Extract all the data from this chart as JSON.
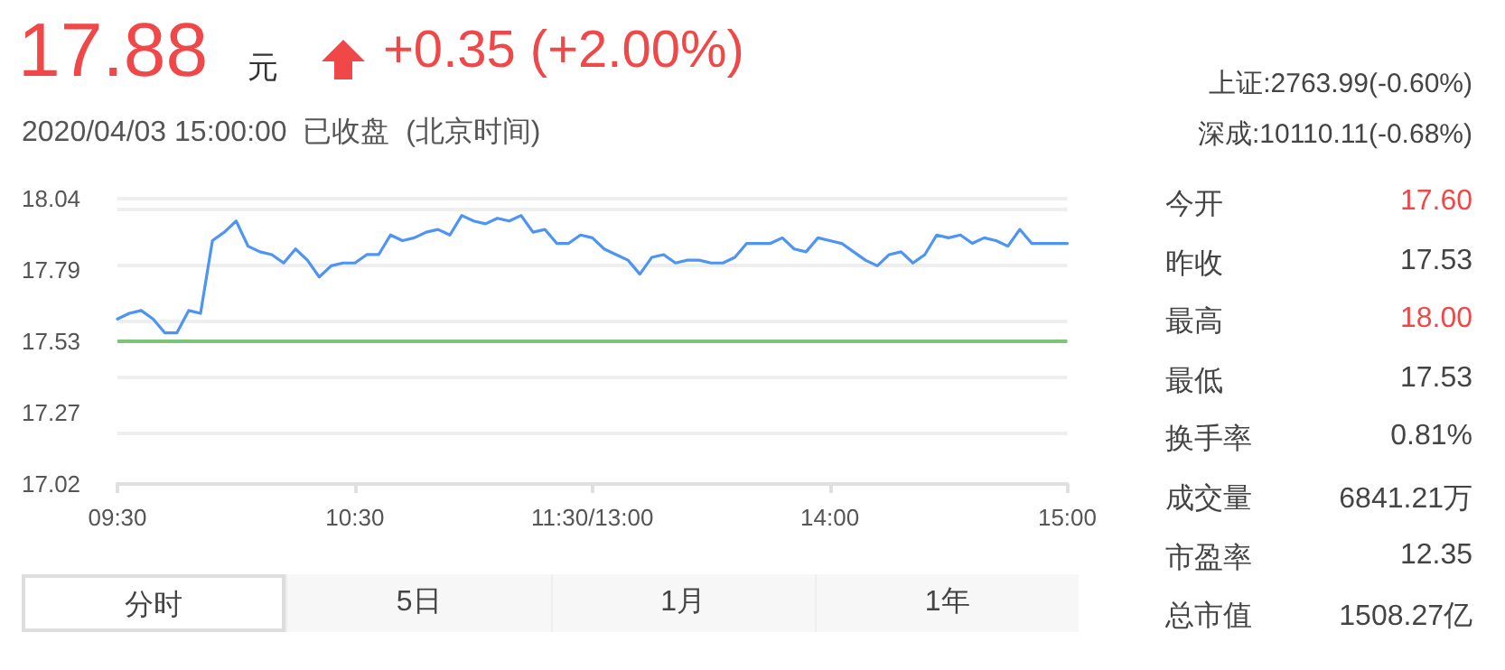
{
  "chart_data": {
    "type": "line",
    "title": "17.88 元",
    "subtitle": "+0.35 (+2.00%)",
    "annotations": [
      "2020/04/03 15:00:00  已收盘  (北京时间)",
      "上证:2763.99(-0.60%)",
      "深成:10110.11(-0.68%)",
      "今开",
      "17.60",
      "昨收",
      "17.53",
      "最高",
      "18.00",
      "最低",
      "17.53",
      "换手率",
      "0.81%",
      "成交量",
      "6841.21万",
      "市盈率",
      "12.35",
      "总市值",
      "1508.27亿",
      "分时",
      "5日",
      "1月",
      "1年"
    ],
    "categories": [
      "09:30",
      null,
      null,
      null,
      null,
      null,
      null,
      null,
      null,
      null,
      null,
      null,
      null,
      null,
      null,
      null,
      null,
      null,
      null,
      null,
      "10:30",
      null,
      null,
      null,
      null,
      null,
      null,
      null,
      null,
      null,
      null,
      null,
      null,
      null,
      null,
      null,
      null,
      null,
      null,
      null,
      "11:30/13:00",
      null,
      null,
      null,
      null,
      null,
      null,
      null,
      null,
      null,
      null,
      null,
      null,
      null,
      null,
      null,
      null,
      null,
      null,
      null,
      "14:00",
      null,
      null,
      null,
      null,
      null,
      null,
      null,
      null,
      null,
      null,
      null,
      null,
      null,
      null,
      null,
      null,
      null,
      null,
      null,
      "15:00"
    ],
    "series": [
      {
        "color": "#4d94f5",
        "values": [
          17.61,
          17.63,
          17.64,
          17.61,
          17.56,
          17.56,
          17.64,
          17.63,
          17.89,
          17.92,
          17.96,
          17.87,
          17.85,
          17.84,
          17.81,
          17.86,
          17.82,
          17.76,
          17.8,
          17.81,
          17.81,
          17.84,
          17.84,
          17.91,
          17.89,
          17.9,
          17.92,
          17.93,
          17.91,
          17.98,
          17.96,
          17.95,
          17.97,
          17.96,
          17.98,
          17.92,
          17.93,
          17.88,
          17.88,
          17.91,
          17.9,
          17.86,
          17.84,
          17.82,
          17.77,
          17.83,
          17.84,
          17.81,
          17.82,
          17.82,
          17.81,
          17.81,
          17.83,
          17.88,
          17.88,
          17.88,
          17.9,
          17.86,
          17.85,
          17.9,
          17.89,
          17.88,
          17.85,
          17.82,
          17.8,
          17.84,
          17.85,
          17.81,
          17.84,
          17.91,
          17.9,
          17.91,
          17.88,
          17.9,
          17.89,
          17.87,
          17.93,
          17.88,
          17.88,
          17.88,
          17.88
        ]
      }
    ],
    "ylim": [
      17.02,
      18.04
    ],
    "yticks": [
      17.02,
      {
        "value": 17.275,
        "label": "17.27"
      },
      17.53,
      {
        "value": 17.785,
        "label": "17.79"
      },
      18.04
    ],
    "ref_lines": [
      {
        "axis": "y",
        "value": 17.53,
        "color": "#7cc576"
      }
    ],
    "grid": "y",
    "marker": "none",
    "line_style": "solid"
  }
}
